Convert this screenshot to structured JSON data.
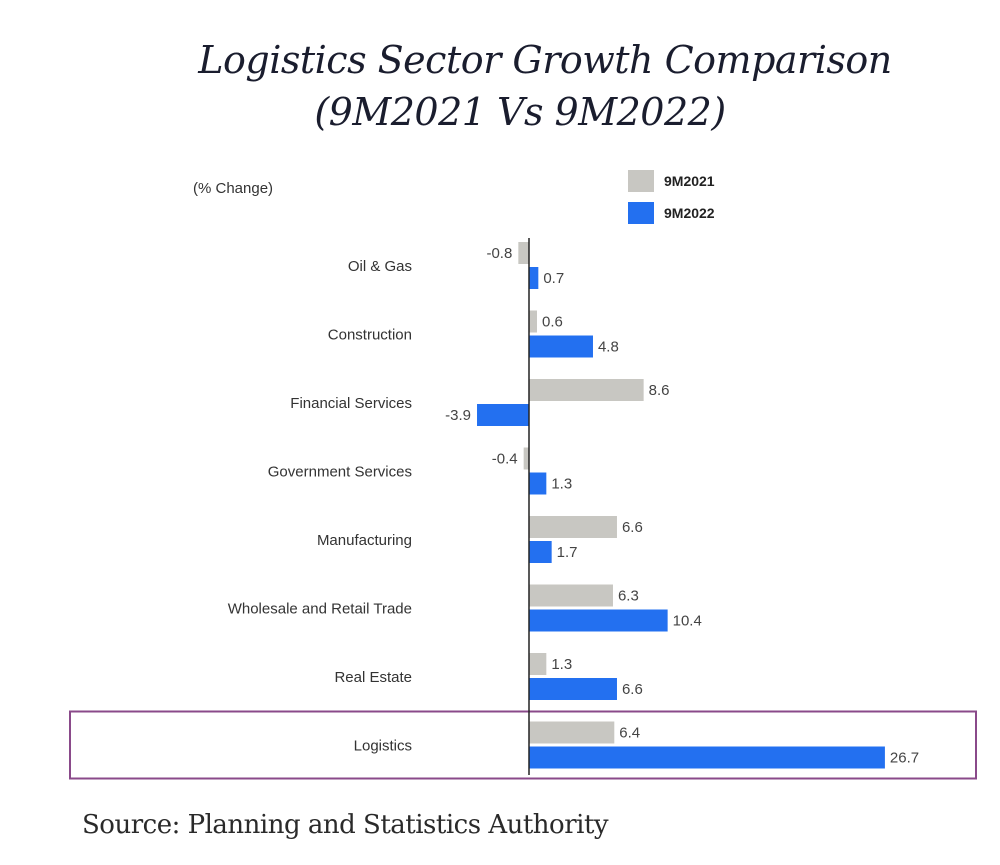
{
  "chart_data": {
    "type": "bar",
    "orientation": "horizontal",
    "title": "Logistics Sector Growth Comparison",
    "subtitle": "(9M2021 Vs 9M2022)",
    "unit_label": "(% Change)",
    "xlabel": "",
    "ylabel": "",
    "categories": [
      "Oil & Gas",
      "Construction",
      "Financial Services",
      "Government  Services",
      "Manufacturing",
      "Wholesale and Retail Trade",
      "Real Estate",
      "Logistics"
    ],
    "series": [
      {
        "name": "9M2021",
        "color": "#c8c7c2",
        "values": [
          -0.8,
          0.6,
          8.6,
          -0.4,
          6.6,
          6.3,
          1.3,
          6.4
        ],
        "labels": [
          "-0.8",
          "0.6",
          "8.6",
          "-0.4",
          "6.6",
          "6.3",
          "1.3",
          "6.4"
        ]
      },
      {
        "name": "9M2022",
        "color": "#2370f0",
        "values": [
          0.7,
          4.8,
          -3.9,
          1.3,
          1.7,
          10.4,
          6.6,
          26.7
        ],
        "labels": [
          "0.7",
          "4.8",
          "-3.9",
          "1.3",
          "1.7",
          "10.4",
          "6.6",
          "26.7"
        ]
      }
    ],
    "highlighted_category": "Logistics",
    "highlight_color": "#8a4a8a",
    "legend_position": "top-right",
    "grid": false,
    "source": "Source: Planning and Statistics Authority"
  }
}
